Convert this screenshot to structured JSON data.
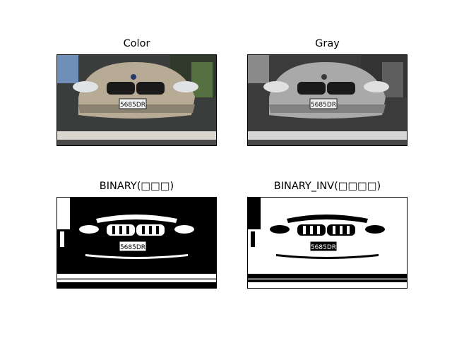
{
  "panels": [
    {
      "title": "Color",
      "mode": "color"
    },
    {
      "title": "Gray",
      "mode": "gray"
    },
    {
      "title": "BINARY(□□□)",
      "mode": "binary"
    },
    {
      "title": "BINARY_INV(□□□□)",
      "mode": "binary-inv"
    }
  ],
  "plate_text": "5685DR"
}
